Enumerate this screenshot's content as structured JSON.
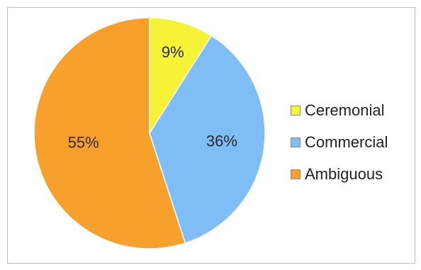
{
  "chart_data": {
    "type": "pie",
    "slices": [
      {
        "label": "Ceremonial",
        "value": 9,
        "display": "9%",
        "color": "#f6f236"
      },
      {
        "label": "Commercial",
        "value": 36,
        "display": "36%",
        "color": "#7fbdf7"
      },
      {
        "label": "Ambiguous",
        "value": 55,
        "display": "55%",
        "color": "#f7a12c"
      }
    ],
    "legend_position": "right",
    "start_angle": "top, clockwise"
  }
}
